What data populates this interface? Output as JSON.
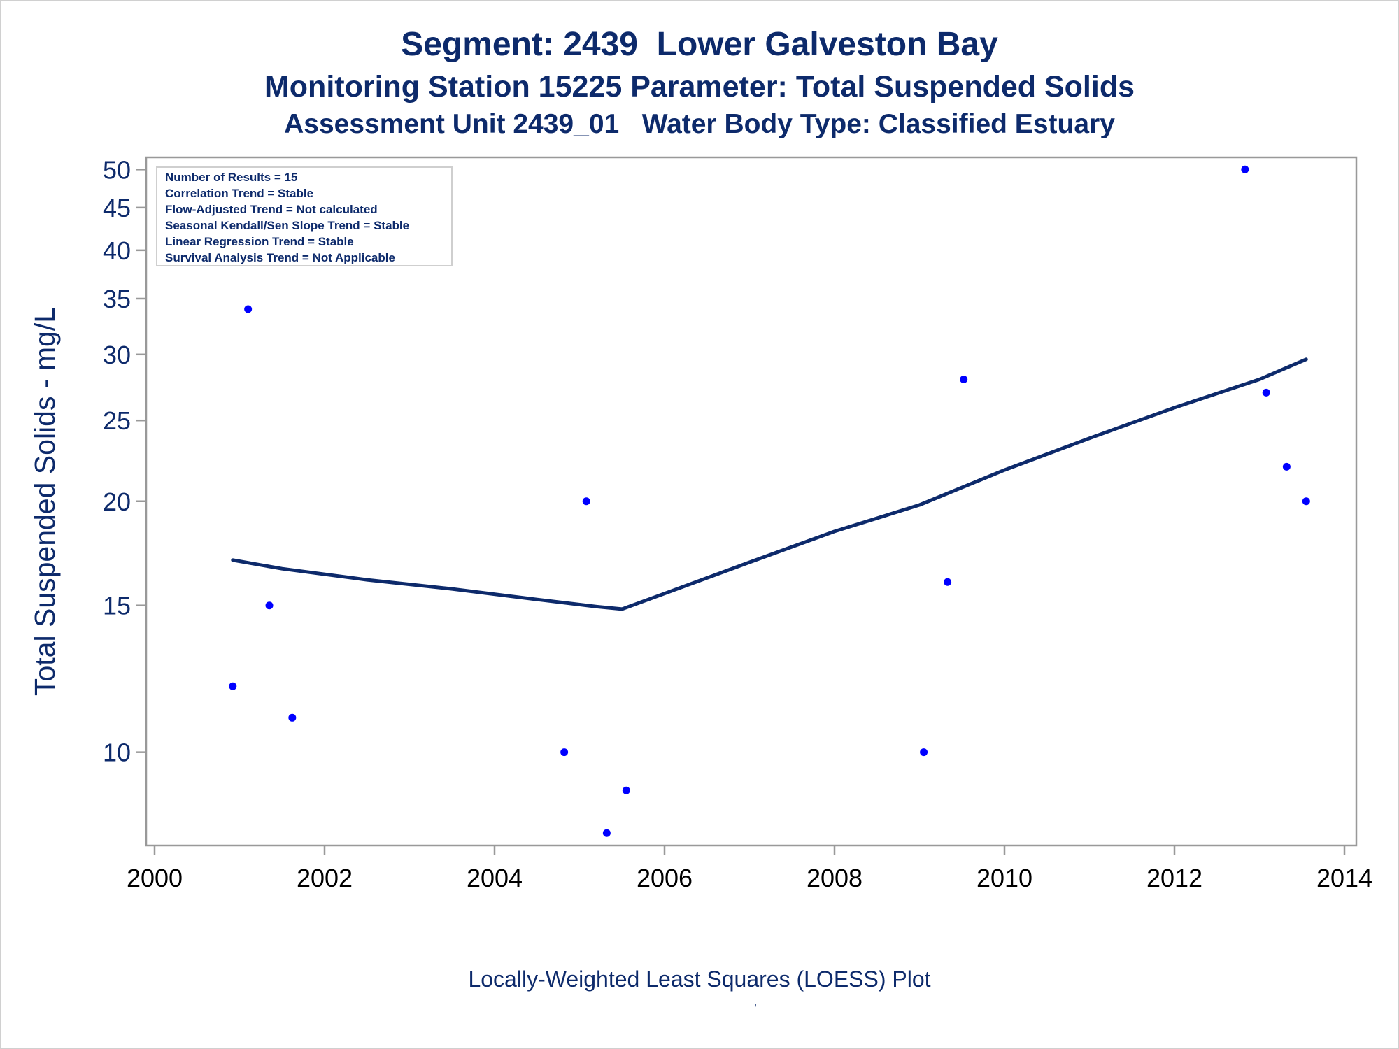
{
  "titles": {
    "line1": "Segment: 2439  Lower Galveston Bay",
    "line2": "Monitoring Station 15225 Parameter: Total Suspended Solids",
    "line3": "Assessment Unit 2439_01   Water Body Type: Classified Estuary"
  },
  "footnote": "Locally-Weighted Least Squares (LOESS) Plot",
  "footnote_mark": "'",
  "stats_box": [
    "Number of Results = 15",
    "Correlation Trend = Stable",
    "Flow-Adjusted Trend = Not calculated",
    "Seasonal Kendall/Sen Slope Trend = Stable",
    "Linear Regression Trend = Stable",
    "Survival Analysis Trend = Not Applicable"
  ],
  "colors": {
    "text": "#0d2a6b",
    "points": "#0000ff",
    "loess_line": "#0d2a6b",
    "axis": "#999999"
  },
  "chart_data": {
    "type": "scatter",
    "xlabel": "",
    "ylabel": "Total Suspended Solids - mg/L",
    "x_scale": "linear",
    "y_scale": "log",
    "xlim": [
      2000,
      2014
    ],
    "ylim": [
      7.85,
      51.5
    ],
    "xticks": [
      2000,
      2002,
      2004,
      2006,
      2008,
      2010,
      2012,
      2014
    ],
    "yticks": [
      10,
      15,
      20,
      25,
      30,
      35,
      40,
      45,
      50
    ],
    "grid": false,
    "legend_position": "top-left",
    "points": [
      {
        "x": 2000.92,
        "y": 12
      },
      {
        "x": 2001.1,
        "y": 34
      },
      {
        "x": 2001.35,
        "y": 15
      },
      {
        "x": 2001.62,
        "y": 11
      },
      {
        "x": 2004.82,
        "y": 10
      },
      {
        "x": 2005.08,
        "y": 20
      },
      {
        "x": 2005.32,
        "y": 8
      },
      {
        "x": 2005.55,
        "y": 9
      },
      {
        "x": 2009.05,
        "y": 10
      },
      {
        "x": 2009.33,
        "y": 16
      },
      {
        "x": 2009.52,
        "y": 28
      },
      {
        "x": 2012.83,
        "y": 50
      },
      {
        "x": 2013.08,
        "y": 27
      },
      {
        "x": 2013.32,
        "y": 22
      },
      {
        "x": 2013.55,
        "y": 20
      }
    ],
    "loess": [
      {
        "x": 2000.92,
        "y": 17.0
      },
      {
        "x": 2001.5,
        "y": 16.6
      },
      {
        "x": 2002.5,
        "y": 16.1
      },
      {
        "x": 2003.5,
        "y": 15.7
      },
      {
        "x": 2004.5,
        "y": 15.25
      },
      {
        "x": 2005.2,
        "y": 14.95
      },
      {
        "x": 2005.5,
        "y": 14.85
      },
      {
        "x": 2006.0,
        "y": 15.5
      },
      {
        "x": 2007.0,
        "y": 16.9
      },
      {
        "x": 2008.0,
        "y": 18.4
      },
      {
        "x": 2009.0,
        "y": 19.8
      },
      {
        "x": 2010.0,
        "y": 21.8
      },
      {
        "x": 2011.0,
        "y": 23.8
      },
      {
        "x": 2012.0,
        "y": 25.9
      },
      {
        "x": 2013.0,
        "y": 28.0
      },
      {
        "x": 2013.55,
        "y": 29.6
      }
    ]
  }
}
